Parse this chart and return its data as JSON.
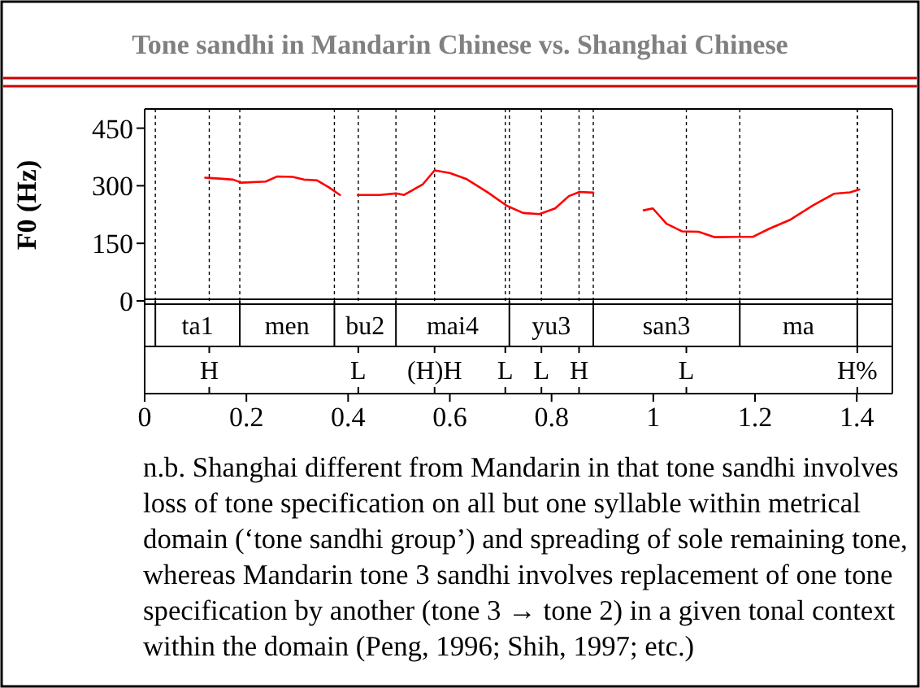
{
  "chart_data": {
    "type": "line",
    "title": "Tone sandhi in Mandarin Chinese vs. Shanghai Chinese",
    "ylabel": "F0 (Hz)",
    "series": [
      {
        "color": "#ff0000",
        "x": [
          0.119,
          0.153,
          0.174,
          0.19,
          0.238,
          0.26,
          0.291,
          0.313,
          0.339,
          0.361,
          0.384
        ],
        "values": [
          321,
          318,
          316,
          308,
          311,
          324,
          323,
          316,
          314,
          297,
          276
        ]
      },
      {
        "color": "#ff0000",
        "x": [
          0.419,
          0.462,
          0.494,
          0.51,
          0.547,
          0.57,
          0.6,
          0.632,
          0.674,
          0.712,
          0.744,
          0.776,
          0.807,
          0.834,
          0.855,
          0.882
        ],
        "values": [
          276,
          276,
          280,
          276,
          304,
          340,
          333,
          318,
          283,
          248,
          229,
          226,
          241,
          273,
          284,
          282
        ]
      },
      {
        "color": "#ff0000",
        "x": [
          0.981,
          0.999,
          1.026,
          1.057,
          1.089,
          1.121,
          1.164,
          1.196,
          1.228,
          1.27,
          1.313,
          1.355,
          1.387,
          1.405
        ],
        "values": [
          236,
          241,
          201,
          181,
          180,
          166,
          167,
          167,
          188,
          212,
          248,
          279,
          283,
          290
        ]
      }
    ],
    "xlim": [
      0,
      1.47
    ],
    "ylim": [
      0,
      500
    ],
    "xticks": [
      0,
      0.2,
      0.4,
      0.6,
      0.8,
      1,
      1.2,
      1.4
    ],
    "yticks": [
      0,
      150,
      300,
      450
    ],
    "ref_lines": [
      {
        "axis": "x",
        "value": 0.021,
        "label": null
      },
      {
        "axis": "x",
        "value": 0.187,
        "label": null
      },
      {
        "axis": "x",
        "value": 0.373,
        "label": null
      },
      {
        "axis": "x",
        "value": 0.494,
        "label": null
      },
      {
        "axis": "x",
        "value": 0.717,
        "label": null
      },
      {
        "axis": "x",
        "value": 0.882,
        "label": null
      },
      {
        "axis": "x",
        "value": 1.17,
        "label": null
      },
      {
        "axis": "x",
        "value": 1.401,
        "label": null
      },
      {
        "axis": "x",
        "value": 0.127,
        "label": "H"
      },
      {
        "axis": "x",
        "value": 0.42,
        "label": "L"
      },
      {
        "axis": "x",
        "value": 0.57,
        "label": "(H)H"
      },
      {
        "axis": "x",
        "value": 0.709,
        "label": "L"
      },
      {
        "axis": "x",
        "value": 0.78,
        "label": "L"
      },
      {
        "axis": "x",
        "value": 0.854,
        "label": "H"
      },
      {
        "axis": "x",
        "value": 1.065,
        "label": "L"
      },
      {
        "axis": "x",
        "value": 1.401,
        "label": "H%"
      }
    ],
    "annotations": [
      "ta1",
      "men",
      "bu2",
      "mai4",
      "yu3",
      "san3",
      "ma",
      "n.b. Shanghai different from Mandarin in that tone sandhi involves loss of tone specification on all but one syllable within metrical domain (‘tone sandhi group’) and spreading of sole remaining tone, whereas Mandarin tone 3 sandhi involves replacement of one tone specification by another (tone 3 → tone 2) in a given tonal context within the domain (Peng, 1996; Shih, 1997; etc.)"
    ],
    "line_style": "solid",
    "marker": "none",
    "grid": false
  }
}
